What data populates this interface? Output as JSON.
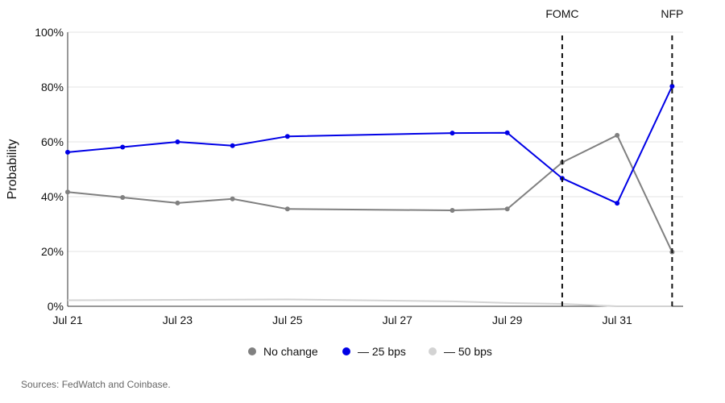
{
  "chart_data": {
    "type": "line",
    "ylabel": "Probability",
    "ylim": [
      0,
      100
    ],
    "yticks": [
      "0%",
      "20%",
      "40%",
      "60%",
      "80%",
      "100%"
    ],
    "ytick_values": [
      0,
      20,
      40,
      60,
      80,
      100
    ],
    "x_ticks": [
      {
        "label": "Jul 21",
        "x": 0
      },
      {
        "label": "Jul 23",
        "x": 2
      },
      {
        "label": "Jul 25",
        "x": 4
      },
      {
        "label": "Jul 27",
        "x": 6
      },
      {
        "label": "Jul 29",
        "x": 8
      },
      {
        "label": "Jul 31",
        "x": 10
      }
    ],
    "xlim": [
      0,
      11.2
    ],
    "grid": "horizontal",
    "series": [
      {
        "name": "No change",
        "color": "#808080",
        "markers": true,
        "x": [
          0,
          1,
          2,
          3,
          4,
          7,
          8,
          9,
          10,
          11
        ],
        "values": [
          41.7,
          39.7,
          37.7,
          39.2,
          35.5,
          35.0,
          35.5,
          52.5,
          62.4,
          19.8
        ]
      },
      {
        "name": "— 25 bps",
        "color": "#0000e6",
        "markers": true,
        "x": [
          0,
          1,
          2,
          3,
          4,
          7,
          8,
          9,
          10,
          11
        ],
        "values": [
          56.2,
          58.1,
          60.0,
          58.6,
          62.0,
          63.2,
          63.3,
          46.7,
          37.6,
          80.3
        ]
      },
      {
        "name": "— 50 bps",
        "color": "#d3d3d3",
        "markers": false,
        "x": [
          0,
          4,
          7,
          8,
          9,
          10,
          11
        ],
        "values": [
          2.2,
          2.5,
          1.8,
          1.2,
          0.9,
          0.0,
          0.0
        ]
      }
    ],
    "annotations": [
      {
        "label": "FOMC",
        "x": 9
      },
      {
        "label": "NFP",
        "x": 11
      }
    ],
    "legend_position": "bottom-center"
  },
  "footer": {
    "source": "Sources: FedWatch and Coinbase."
  }
}
